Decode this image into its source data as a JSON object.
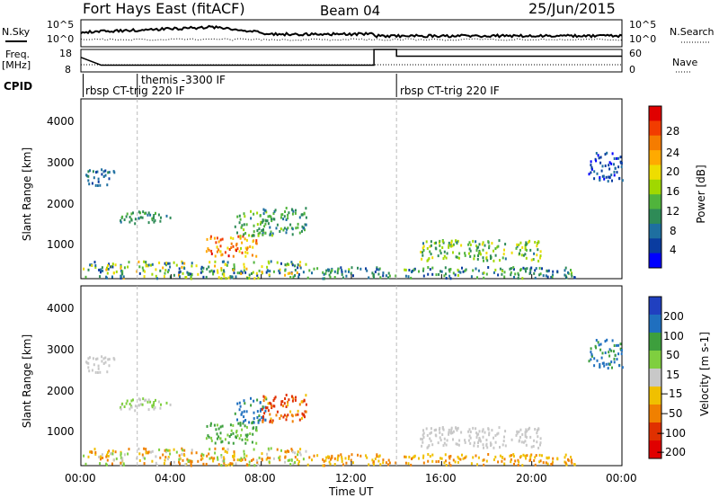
{
  "header": {
    "station": "Fort Hays East (fitACF)",
    "beam": "Beam 04",
    "date": "25/Jun/2015"
  },
  "side_labels": {
    "nsky": "N.Sky",
    "nsearch": "N.Search",
    "freq": "Freq.",
    "freq_unit": "[MHz]",
    "nave": "Nave",
    "cpid": "CPID"
  },
  "noise_axis": {
    "left_ticks": [
      "10^5",
      "10^0"
    ],
    "right_ticks": [
      "10^5",
      "10^0"
    ]
  },
  "freq_axis": {
    "left_ticks": [
      "18",
      "8"
    ],
    "right_ticks": [
      "60",
      "0"
    ]
  },
  "cpid_labels": [
    {
      "text": "rbsp CT-trig 220 IF",
      "hour": 0.1
    },
    {
      "text": "themis -3300 IF",
      "hour": 2.5
    },
    {
      "text": "rbsp CT-trig 220 IF",
      "hour": 14.0
    }
  ],
  "range_axis": {
    "label": "Slant Range [km]",
    "ticks": [
      "4000",
      "3000",
      "2000",
      "1000"
    ]
  },
  "time_axis": {
    "label": "Time UT",
    "ticks": [
      "00:00",
      "04:00",
      "08:00",
      "12:00",
      "16:00",
      "20:00",
      "00:00"
    ]
  },
  "power_bar": {
    "label": "Power [dB]",
    "ticks": [
      "28",
      "24",
      "20",
      "16",
      "12",
      "8",
      "4"
    ],
    "colors": [
      "#e00000",
      "#f23c00",
      "#f57c00",
      "#ffaa00",
      "#eedd00",
      "#a0d800",
      "#50b43c",
      "#2e8b57",
      "#1e6fa0",
      "#0a3ca0",
      "#0000ff"
    ]
  },
  "velocity_bar": {
    "label": "Velocity [m s-1]",
    "ticks": [
      "200",
      "100",
      "50",
      "15",
      "−15",
      "−50",
      "−100",
      "−200"
    ],
    "colors": [
      "#2040c0",
      "#1f6fbf",
      "#3d9f3d",
      "#7fcf3f",
      "#c8c8c8",
      "#f0c000",
      "#f08000",
      "#e03000",
      "#e00000"
    ]
  },
  "chart_data": {
    "type": "heatmap",
    "x_range_hours": [
      0,
      24
    ],
    "y_range_km": [
      180,
      4500
    ],
    "regions": [
      {
        "panel": "both",
        "t0": 1.5,
        "t1": 4.0,
        "r0": 1500,
        "r1": 1800,
        "pw": [
          10,
          14
        ],
        "vel": [
          -15,
          50
        ]
      },
      {
        "panel": "both",
        "t0": 5.5,
        "t1": 7.8,
        "r0": 700,
        "r1": 1200,
        "pw": [
          18,
          30
        ],
        "vel": [
          15,
          100
        ]
      },
      {
        "panel": "both",
        "t0": 6.8,
        "t1": 8.2,
        "r0": 1200,
        "r1": 1800,
        "pw": [
          10,
          18
        ],
        "vel": [
          50,
          200
        ]
      },
      {
        "panel": "both",
        "t0": 8.0,
        "t1": 10.0,
        "r0": 1200,
        "r1": 1900,
        "pw": [
          8,
          16
        ],
        "vel": [
          -200,
          -15
        ]
      },
      {
        "panel": "both",
        "t0": 0.0,
        "t1": 10.0,
        "r0": 180,
        "r1": 600,
        "pw": [
          6,
          22
        ],
        "vel": [
          -100,
          50
        ]
      },
      {
        "panel": "both",
        "t0": 10.0,
        "t1": 22.0,
        "r0": 180,
        "r1": 450,
        "pw": [
          6,
          16
        ],
        "vel": [
          -80,
          -15
        ]
      },
      {
        "panel": "both",
        "t0": 15.0,
        "t1": 20.5,
        "r0": 600,
        "r1": 1100,
        "pw": [
          10,
          20
        ],
        "vel": [
          -15,
          15
        ]
      },
      {
        "panel": "both",
        "t0": 0.2,
        "t1": 1.5,
        "r0": 2400,
        "r1": 2800,
        "pw": [
          6,
          12
        ],
        "vel": [
          -15,
          15
        ]
      },
      {
        "panel": "both",
        "t0": 22.5,
        "t1": 24.0,
        "r0": 2500,
        "r1": 3200,
        "pw": [
          4,
          10
        ],
        "vel": [
          50,
          200
        ]
      }
    ]
  }
}
